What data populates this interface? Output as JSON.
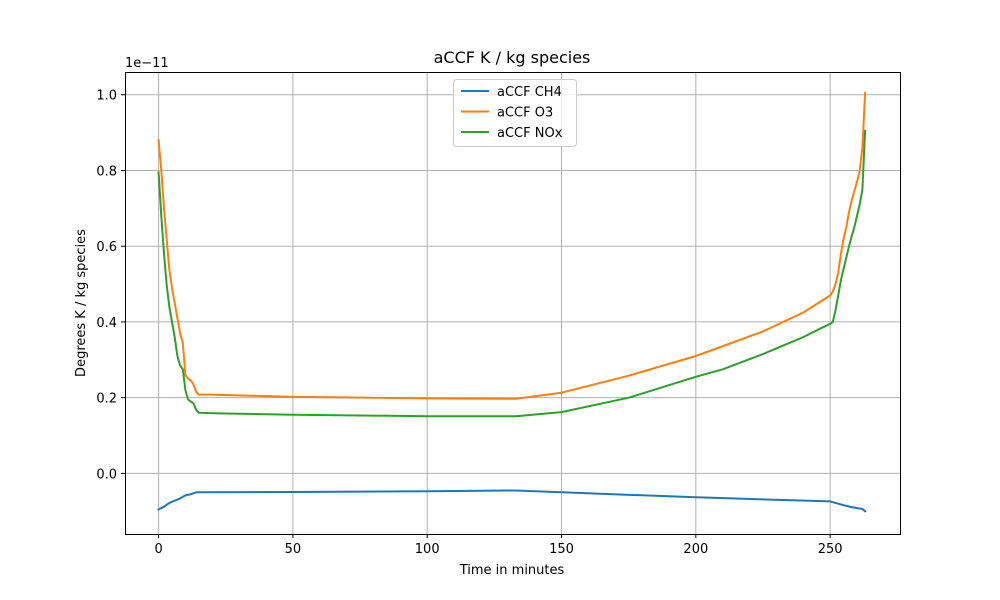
{
  "chart_data": {
    "type": "line",
    "title": "aCCF K / kg species",
    "xlabel": "Time in minutes",
    "ylabel": "Degrees K / kg species",
    "offset_text": "1e−11",
    "xlim": [
      -12.5,
      276
    ],
    "ylim": [
      -0.16,
      1.06
    ],
    "x_ticks": [
      0,
      50,
      100,
      150,
      200,
      250
    ],
    "x_tick_labels": [
      "0",
      "50",
      "100",
      "150",
      "200",
      "250"
    ],
    "y_ticks": [
      0.0,
      0.2,
      0.4,
      0.6,
      0.8,
      1.0
    ],
    "y_tick_labels": [
      "0.0",
      "0.2",
      "0.4",
      "0.6",
      "0.8",
      "1.0"
    ],
    "grid": true,
    "legend_position": "upper center",
    "series": [
      {
        "name": "aCCF CH4",
        "color": "#1f77b4",
        "points": [
          [
            0,
            -0.095
          ],
          [
            2,
            -0.088
          ],
          [
            4,
            -0.078
          ],
          [
            6,
            -0.072
          ],
          [
            8,
            -0.066
          ],
          [
            10,
            -0.058
          ],
          [
            12,
            -0.055
          ],
          [
            14,
            -0.05
          ],
          [
            20,
            -0.05
          ],
          [
            50,
            -0.049
          ],
          [
            100,
            -0.047
          ],
          [
            133,
            -0.045
          ],
          [
            150,
            -0.05
          ],
          [
            200,
            -0.063
          ],
          [
            250,
            -0.074
          ],
          [
            252,
            -0.078
          ],
          [
            255,
            -0.084
          ],
          [
            258,
            -0.089
          ],
          [
            262,
            -0.094
          ],
          [
            263,
            -0.1
          ]
        ]
      },
      {
        "name": "aCCF O3",
        "color": "#ff7f0e",
        "points": [
          [
            0,
            0.88
          ],
          [
            1,
            0.8
          ],
          [
            2,
            0.7
          ],
          [
            3,
            0.62
          ],
          [
            4,
            0.54
          ],
          [
            5,
            0.49
          ],
          [
            6,
            0.45
          ],
          [
            7,
            0.41
          ],
          [
            8,
            0.37
          ],
          [
            9,
            0.345
          ],
          [
            10,
            0.26
          ],
          [
            11,
            0.25
          ],
          [
            12,
            0.245
          ],
          [
            13,
            0.235
          ],
          [
            14,
            0.215
          ],
          [
            15,
            0.208
          ],
          [
            20,
            0.208
          ],
          [
            50,
            0.202
          ],
          [
            100,
            0.198
          ],
          [
            133,
            0.197
          ],
          [
            150,
            0.213
          ],
          [
            175,
            0.258
          ],
          [
            200,
            0.31
          ],
          [
            225,
            0.375
          ],
          [
            240,
            0.425
          ],
          [
            250,
            0.47
          ],
          [
            251,
            0.48
          ],
          [
            252,
            0.5
          ],
          [
            253,
            0.53
          ],
          [
            254,
            0.58
          ],
          [
            255,
            0.62
          ],
          [
            256,
            0.65
          ],
          [
            257,
            0.69
          ],
          [
            258,
            0.72
          ],
          [
            260,
            0.77
          ],
          [
            261,
            0.8
          ],
          [
            262,
            0.86
          ],
          [
            263,
            1.005
          ]
        ]
      },
      {
        "name": "aCCF NOx",
        "color": "#2ca02c",
        "points": [
          [
            0,
            0.795
          ],
          [
            1,
            0.68
          ],
          [
            2,
            0.58
          ],
          [
            3,
            0.5
          ],
          [
            4,
            0.44
          ],
          [
            5,
            0.4
          ],
          [
            6,
            0.36
          ],
          [
            7,
            0.31
          ],
          [
            8,
            0.285
          ],
          [
            9,
            0.275
          ],
          [
            10,
            0.22
          ],
          [
            11,
            0.195
          ],
          [
            12,
            0.19
          ],
          [
            13,
            0.185
          ],
          [
            14,
            0.168
          ],
          [
            15,
            0.16
          ],
          [
            20,
            0.159
          ],
          [
            50,
            0.155
          ],
          [
            100,
            0.151
          ],
          [
            133,
            0.151
          ],
          [
            150,
            0.162
          ],
          [
            175,
            0.2
          ],
          [
            200,
            0.255
          ],
          [
            210,
            0.275
          ],
          [
            225,
            0.315
          ],
          [
            240,
            0.36
          ],
          [
            245,
            0.378
          ],
          [
            250,
            0.395
          ],
          [
            251,
            0.4
          ],
          [
            252,
            0.43
          ],
          [
            253,
            0.47
          ],
          [
            254,
            0.51
          ],
          [
            255,
            0.54
          ],
          [
            256,
            0.57
          ],
          [
            257,
            0.6
          ],
          [
            258,
            0.625
          ],
          [
            259,
            0.65
          ],
          [
            260,
            0.68
          ],
          [
            261,
            0.71
          ],
          [
            262,
            0.75
          ],
          [
            263,
            0.905
          ]
        ]
      }
    ]
  }
}
